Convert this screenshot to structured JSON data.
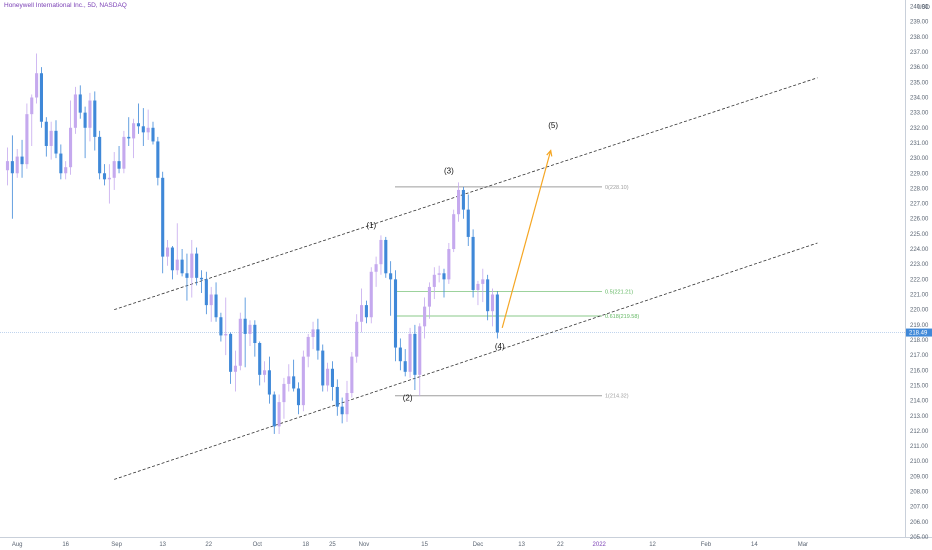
{
  "header": {
    "symbol_title": "Honeywell International Inc., 5D, NASDAQ",
    "currency": "USD"
  },
  "colors": {
    "bull": "#c5a9ee",
    "bear": "#3f88d8",
    "channel": "#333333",
    "projection": "#f5a623",
    "fib_main": "#9e9e9e",
    "fib_green": "#62b762",
    "last_price_bg": "#3f88d8"
  },
  "chart_data": {
    "type": "candlestick",
    "y_axis": {
      "range": [
        205,
        240.3
      ],
      "ticks": [
        205,
        206,
        207,
        208,
        209,
        210,
        211,
        212,
        213,
        214,
        215,
        216,
        217,
        218,
        219,
        220,
        221,
        222,
        223,
        224,
        225,
        226,
        227,
        228,
        229,
        230,
        231,
        232,
        233,
        234,
        235,
        236,
        237,
        238,
        239,
        240
      ],
      "last_price": 218.49,
      "last_price_label": "218.49"
    },
    "x_axis": {
      "labels": [
        {
          "text": "Aug",
          "index": 2
        },
        {
          "text": "16",
          "index": 12
        },
        {
          "text": "Sep",
          "index": 22.5
        },
        {
          "text": "13",
          "index": 32
        },
        {
          "text": "22",
          "index": 41.5
        },
        {
          "text": "Oct",
          "index": 51.5
        },
        {
          "text": "18",
          "index": 61.5
        },
        {
          "text": "25",
          "index": 67
        },
        {
          "text": "Nov",
          "index": 73.5
        },
        {
          "text": "15",
          "index": 86
        },
        {
          "text": "Dec",
          "index": 97
        },
        {
          "text": "13",
          "index": 106
        },
        {
          "text": "22",
          "index": 114
        },
        {
          "text": "2022",
          "index": 122
        },
        {
          "text": "12",
          "index": 133
        },
        {
          "text": "Feb",
          "index": 144
        },
        {
          "text": "14",
          "index": 154
        },
        {
          "text": "Mar",
          "index": 164
        }
      ]
    },
    "candles": [
      [
        229.2,
        230.7,
        228.2,
        229.8
      ],
      [
        229.8,
        231.5,
        226.0,
        229.0
      ],
      [
        229.0,
        230.6,
        228.7,
        230.1
      ],
      [
        230.1,
        231.2,
        228.7,
        229.6
      ],
      [
        229.6,
        233.6,
        229.3,
        232.9
      ],
      [
        232.9,
        234.2,
        230.8,
        234.0
      ],
      [
        234.0,
        236.9,
        233.6,
        235.6
      ],
      [
        235.6,
        236.0,
        232.0,
        232.4
      ],
      [
        232.4,
        232.7,
        230.1,
        230.8
      ],
      [
        230.8,
        232.4,
        229.9,
        231.8
      ],
      [
        231.8,
        232.5,
        230.0,
        230.3
      ],
      [
        230.3,
        230.9,
        228.6,
        229.0
      ],
      [
        229.0,
        229.8,
        228.6,
        229.4
      ],
      [
        229.4,
        233.8,
        228.9,
        232.0
      ],
      [
        232.0,
        234.7,
        231.6,
        234.2
      ],
      [
        234.2,
        234.8,
        232.6,
        233.0
      ],
      [
        233.0,
        233.4,
        230.0,
        232.0
      ],
      [
        232.0,
        234.3,
        231.1,
        233.8
      ],
      [
        233.8,
        234.4,
        230.5,
        231.4
      ],
      [
        231.4,
        231.8,
        228.6,
        229.0
      ],
      [
        229.0,
        229.6,
        228.2,
        228.6
      ],
      [
        228.6,
        229.6,
        227.0,
        228.7
      ],
      [
        228.7,
        230.4,
        227.9,
        229.8
      ],
      [
        229.8,
        230.8,
        229.0,
        229.3
      ],
      [
        229.3,
        231.8,
        229.0,
        231.4
      ],
      [
        231.4,
        232.7,
        230.8,
        231.3
      ],
      [
        231.3,
        232.6,
        230.0,
        232.3
      ],
      [
        232.3,
        233.6,
        231.6,
        232.1
      ],
      [
        232.1,
        233.3,
        230.8,
        231.7
      ],
      [
        231.7,
        233.2,
        231.2,
        232.0
      ],
      [
        232.0,
        232.4,
        230.9,
        231.1
      ],
      [
        231.1,
        231.4,
        228.2,
        228.7
      ],
      [
        228.7,
        229.1,
        222.4,
        223.5
      ],
      [
        223.5,
        224.6,
        222.9,
        224.1
      ],
      [
        224.1,
        224.2,
        222.0,
        222.6
      ],
      [
        222.6,
        225.7,
        222.3,
        223.3
      ],
      [
        223.3,
        224.0,
        222.2,
        222.4
      ],
      [
        222.4,
        223.7,
        220.6,
        222.1
      ],
      [
        222.1,
        224.6,
        220.8,
        223.7
      ],
      [
        223.7,
        224.1,
        221.6,
        222.1
      ],
      [
        222.1,
        222.6,
        221.1,
        222.0
      ],
      [
        222.0,
        222.5,
        219.7,
        220.3
      ],
      [
        220.3,
        221.5,
        219.2,
        221.0
      ],
      [
        221.0,
        221.8,
        219.2,
        219.5
      ],
      [
        219.5,
        219.8,
        217.9,
        218.3
      ],
      [
        218.3,
        220.8,
        217.0,
        218.4
      ],
      [
        218.4,
        218.5,
        215.1,
        215.9
      ],
      [
        215.9,
        217.3,
        214.6,
        216.3
      ],
      [
        216.3,
        219.8,
        216.0,
        219.4
      ],
      [
        219.4,
        220.8,
        216.2,
        218.4
      ],
      [
        218.4,
        219.3,
        217.6,
        219.0
      ],
      [
        219.0,
        219.3,
        216.9,
        217.8
      ],
      [
        217.8,
        217.9,
        215.0,
        215.7
      ],
      [
        215.7,
        216.6,
        215.2,
        216.0
      ],
      [
        216.0,
        216.9,
        213.8,
        214.4
      ],
      [
        214.4,
        214.6,
        211.8,
        212.3
      ],
      [
        212.3,
        214.4,
        211.8,
        213.9
      ],
      [
        213.9,
        215.5,
        212.8,
        215.1
      ],
      [
        215.1,
        216.4,
        214.6,
        215.6
      ],
      [
        215.6,
        216.7,
        214.6,
        214.8
      ],
      [
        214.8,
        215.2,
        213.1,
        213.7
      ],
      [
        213.7,
        217.3,
        213.3,
        216.9
      ],
      [
        216.9,
        218.4,
        216.2,
        218.2
      ],
      [
        218.2,
        219.2,
        217.4,
        218.7
      ],
      [
        218.7,
        219.4,
        216.7,
        217.3
      ],
      [
        217.3,
        217.7,
        214.6,
        215.0
      ],
      [
        215.0,
        216.5,
        214.6,
        216.1
      ],
      [
        216.1,
        216.6,
        214.0,
        214.9
      ],
      [
        214.9,
        215.4,
        213.0,
        213.6
      ],
      [
        213.6,
        214.2,
        212.5,
        213.1
      ],
      [
        213.1,
        215.3,
        212.6,
        214.5
      ],
      [
        214.5,
        217.2,
        214.2,
        216.9
      ],
      [
        216.9,
        219.7,
        216.5,
        219.2
      ],
      [
        219.2,
        221.4,
        218.5,
        220.3
      ],
      [
        220.3,
        220.6,
        219.1,
        219.5
      ],
      [
        219.5,
        222.8,
        219.1,
        222.5
      ],
      [
        222.5,
        223.5,
        221.5,
        223.0
      ],
      [
        223.0,
        224.9,
        222.3,
        224.6
      ],
      [
        224.6,
        224.8,
        222.1,
        222.4
      ],
      [
        222.4,
        223.2,
        219.6,
        222.0
      ],
      [
        222.0,
        222.6,
        216.6,
        217.5
      ],
      [
        217.5,
        218.1,
        216.0,
        216.6
      ],
      [
        216.6,
        217.4,
        215.6,
        215.9
      ],
      [
        215.9,
        218.8,
        215.5,
        218.4
      ],
      [
        218.4,
        219.0,
        214.7,
        215.7
      ],
      [
        215.7,
        219.1,
        214.3,
        218.9
      ],
      [
        218.9,
        220.8,
        218.1,
        220.2
      ],
      [
        220.2,
        221.8,
        219.4,
        221.5
      ],
      [
        221.5,
        222.8,
        220.7,
        222.3
      ],
      [
        222.3,
        222.9,
        221.8,
        222.4
      ],
      [
        222.4,
        222.7,
        220.8,
        222.0
      ],
      [
        222.0,
        224.4,
        221.7,
        224.0
      ],
      [
        224.0,
        226.6,
        223.8,
        226.3
      ],
      [
        226.3,
        228.4,
        225.8,
        227.9
      ],
      [
        227.9,
        228.1,
        226.0,
        226.6
      ],
      [
        226.6,
        227.6,
        224.2,
        224.8
      ],
      [
        224.8,
        225.3,
        220.8,
        221.3
      ],
      [
        221.3,
        221.9,
        220.3,
        221.7
      ],
      [
        221.7,
        222.7,
        220.5,
        222.0
      ],
      [
        222.0,
        222.3,
        219.3,
        219.9
      ],
      [
        219.9,
        221.4,
        218.9,
        221.0
      ],
      [
        221.0,
        221.2,
        218.1,
        218.5
      ]
    ],
    "channel_lines": [
      {
        "from": [
          22,
          220.0
        ],
        "to": [
          167,
          235.3
        ]
      },
      {
        "from": [
          22,
          208.8
        ],
        "to": [
          167,
          224.4
        ]
      }
    ],
    "projection": {
      "from": [
        102,
        218.8
      ],
      "to": [
        112,
        230.5
      ]
    },
    "fib_levels": [
      {
        "label": "0(228.10)",
        "price": 228.1,
        "tone": "main"
      },
      {
        "label": "0.5(221.21)",
        "price": 221.21,
        "tone": "green"
      },
      {
        "label": "0.618(219.58)",
        "price": 219.58,
        "tone": "green"
      },
      {
        "label": "1(214.32)",
        "price": 214.32,
        "tone": "main"
      }
    ],
    "wave_labels": [
      {
        "text": "(1)",
        "index": 75,
        "price": 225.4
      },
      {
        "text": "(2)",
        "index": 82.5,
        "price": 214.0
      },
      {
        "text": "(3)",
        "index": 91,
        "price": 229.0
      },
      {
        "text": "(4)",
        "index": 101.5,
        "price": 217.4
      },
      {
        "text": "(5)",
        "index": 112.5,
        "price": 232.0
      }
    ]
  }
}
